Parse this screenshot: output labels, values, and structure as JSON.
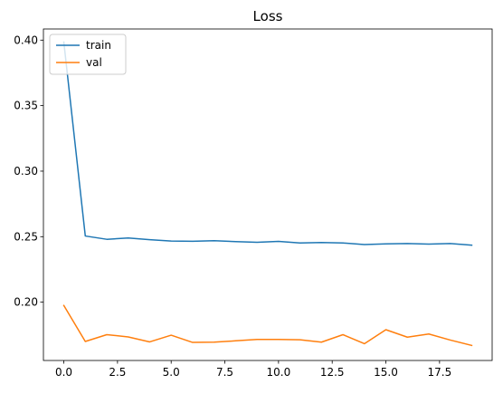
{
  "chart_data": {
    "type": "line",
    "title": "Loss",
    "xlabel": "",
    "ylabel": "",
    "x": [
      0,
      1,
      2,
      3,
      4,
      5,
      6,
      7,
      8,
      9,
      10,
      11,
      12,
      13,
      14,
      15,
      16,
      17,
      18,
      19
    ],
    "xlim": [
      -0.95,
      19.95
    ],
    "ylim": [
      0.1555,
      0.4085
    ],
    "xticks": [
      0.0,
      2.5,
      5.0,
      7.5,
      10.0,
      12.5,
      15.0,
      17.5
    ],
    "xtick_labels": [
      "0.0",
      "2.5",
      "5.0",
      "7.5",
      "10.0",
      "12.5",
      "15.0",
      "17.5"
    ],
    "yticks": [
      0.2,
      0.25,
      0.3,
      0.35,
      0.4
    ],
    "ytick_labels": [
      "0.20",
      "0.25",
      "0.30",
      "0.35",
      "0.40"
    ],
    "grid": false,
    "legend_position": "top-left",
    "series": [
      {
        "name": "train",
        "color": "#1f77b4",
        "values": [
          0.3985,
          0.2505,
          0.248,
          0.249,
          0.2477,
          0.2467,
          0.2465,
          0.2469,
          0.2462,
          0.2457,
          0.2464,
          0.2452,
          0.2455,
          0.2452,
          0.244,
          0.2445,
          0.2448,
          0.2443,
          0.2448,
          0.2435
        ]
      },
      {
        "name": "val",
        "color": "#ff7f0e",
        "values": [
          0.1975,
          0.17,
          0.1752,
          0.1735,
          0.1697,
          0.1748,
          0.1693,
          0.1695,
          0.1705,
          0.1716,
          0.1716,
          0.1713,
          0.1695,
          0.1752,
          0.1683,
          0.179,
          0.1733,
          0.1757,
          0.1711,
          0.167
        ]
      }
    ]
  }
}
